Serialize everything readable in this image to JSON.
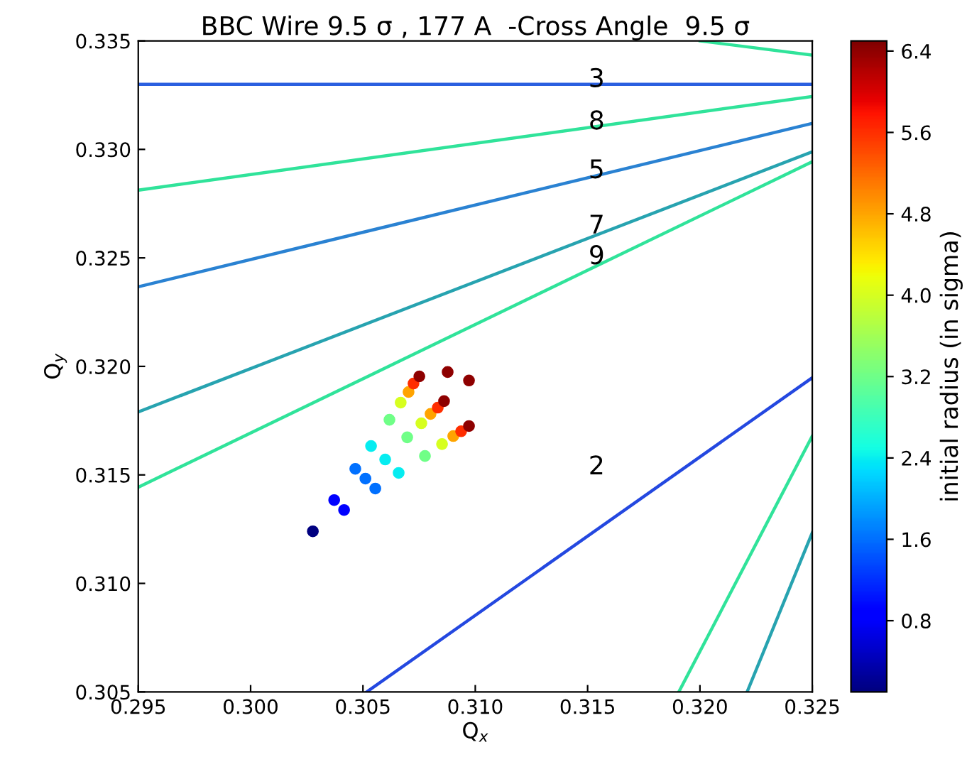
{
  "chart_data": {
    "type": "line",
    "title": "BBC Wire 9.5 σ , 177 A  -Cross Angle  9.5 σ",
    "xlabel": "Q$_{x}$",
    "ylabel": "Q$_{y}$",
    "clabel": "initial radius (in sigma)",
    "xlim": [
      0.295,
      0.325
    ],
    "xticks": [
      0.295,
      {
        "value": 0.3,
        "label": "0.300"
      },
      0.305,
      {
        "value": 0.31,
        "label": "0.310"
      },
      0.315,
      {
        "value": 0.32,
        "label": "0.320"
      },
      0.325
    ],
    "ylim": [
      0.305,
      0.335
    ],
    "yticks": [
      0.305,
      {
        "value": 0.31,
        "label": "0.310"
      },
      0.315,
      {
        "value": 0.32,
        "label": "0.320"
      },
      0.325,
      {
        "value": 0.33,
        "label": "0.330"
      },
      0.335
    ],
    "clim": [
      0.1,
      6.5
    ],
    "cticks": [
      0.8,
      1.6,
      2.4,
      3.2,
      {
        "value": 4,
        "label": "4.0"
      },
      4.8,
      5.6,
      6.4
    ],
    "grid": false,
    "legend": false,
    "marker": "none",
    "line_style": "solid",
    "series": [
      {
        "color": "#2a5fe0",
        "x": [
          0.295,
          0.325
        ],
        "values": [
          0.333,
          0.333
        ]
      },
      {
        "color": "#30e39a",
        "x": [
          0.295,
          0.325
        ],
        "values": [
          0.32812,
          0.33244
        ]
      },
      {
        "color": "#2a82d2",
        "x": [
          0.295,
          0.325
        ],
        "values": [
          0.32367,
          0.3312
        ]
      },
      {
        "color": "#27a3b0",
        "x": [
          0.295,
          0.325
        ],
        "values": [
          0.3179,
          0.32989
        ]
      },
      {
        "color": "#30e39a",
        "x": [
          0.295,
          0.325
        ],
        "values": [
          0.31443,
          0.32943
        ]
      },
      {
        "color": "#30e39a",
        "x": [
          0.32001,
          0.325
        ],
        "values": [
          0.335,
          0.33434
        ]
      },
      {
        "color": "#2448e0",
        "x": [
          0.30517,
          0.325
        ],
        "values": [
          0.305,
          0.31948
        ]
      },
      {
        "color": "#30e39a",
        "x": [
          0.31906,
          0.325
        ],
        "values": [
          0.305,
          0.31679
        ]
      },
      {
        "color": "#27a3b0",
        "x": [
          0.3221,
          0.325
        ],
        "values": [
          0.305,
          0.31234
        ]
      },
      {
        "type": "scatter",
        "marker": "circle",
        "x": [
          0.30277,
          0.30372,
          0.30416,
          0.30466,
          0.30555,
          0.30511,
          0.30536,
          0.30659,
          0.30599,
          0.30618,
          0.30776,
          0.30697,
          0.30668,
          0.30852,
          0.3076,
          0.30703,
          0.30902,
          0.30801,
          0.30725,
          0.30937,
          0.30833,
          0.30751,
          0.30972,
          0.30861,
          0.30877,
          0.30972
        ],
        "values": [
          0.3124,
          0.31384,
          0.31338,
          0.31528,
          0.31437,
          0.31483,
          0.31633,
          0.31509,
          0.31571,
          0.31754,
          0.31587,
          0.31673,
          0.31833,
          0.31642,
          0.31738,
          0.31882,
          0.31679,
          0.31781,
          0.31921,
          0.31701,
          0.3181,
          0.31954,
          0.31725,
          0.3184,
          0.31974,
          0.31935
        ],
        "colors": [
          "#000080",
          "#0000fd",
          "#0000fd",
          "#006fff",
          "#006fff",
          "#006fff",
          "#07efef",
          "#07efef",
          "#07efef",
          "#6eff88",
          "#6eff88",
          "#6eff88",
          "#d5ff22",
          "#d5ff22",
          "#d5ff22",
          "#ffa600",
          "#ffa600",
          "#ffa600",
          "#ff3000",
          "#ff3000",
          "#ff3000",
          "#920000",
          "#920000",
          "#920000",
          "#920000",
          "#920000"
        ],
        "cvalues": [
          0.1,
          0.8,
          0.8,
          1.6,
          1.6,
          1.6,
          2.4,
          2.4,
          2.4,
          3.2,
          3.2,
          3.2,
          4.0,
          4.0,
          4.0,
          4.8,
          4.8,
          4.8,
          5.6,
          5.6,
          5.6,
          6.4,
          6.4,
          6.4,
          6.4,
          6.4
        ]
      }
    ],
    "annotations": [
      "3",
      "8",
      "5",
      "7",
      "9",
      "2"
    ]
  }
}
